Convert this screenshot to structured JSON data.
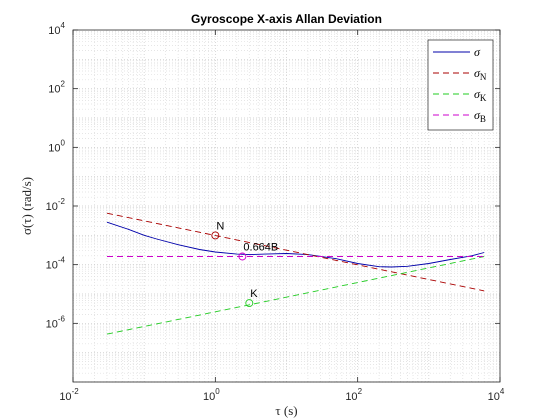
{
  "chart_data": {
    "type": "line",
    "title": "Gyroscope X-axis Allan Deviation",
    "xlabel": "τ (s)",
    "ylabel": "σ(τ) (rad/s)",
    "xscale": "log",
    "yscale": "log",
    "xlim": [
      0.01,
      10000
    ],
    "ylim": [
      1e-08,
      10000
    ],
    "grid": true,
    "minor_grid": true,
    "legend_position": "top-right",
    "xticks": [
      {
        "value": 0.01,
        "base": "10",
        "exp": "-2"
      },
      {
        "value": 1,
        "base": "10",
        "exp": "0"
      },
      {
        "value": 100,
        "base": "10",
        "exp": "2"
      },
      {
        "value": 10000,
        "base": "10",
        "exp": "4"
      }
    ],
    "yticks": [
      {
        "value": 1e-06,
        "base": "10",
        "exp": "-6"
      },
      {
        "value": 0.0001,
        "base": "10",
        "exp": "-4"
      },
      {
        "value": 0.01,
        "base": "10",
        "exp": "-2"
      },
      {
        "value": 1,
        "base": "10",
        "exp": "0"
      },
      {
        "value": 100,
        "base": "10",
        "exp": "2"
      },
      {
        "value": 10000,
        "base": "10",
        "exp": "4"
      }
    ],
    "series": [
      {
        "name": "σ",
        "color": "#0000aa",
        "dash": "solid",
        "x": [
          0.03,
          0.06,
          0.1,
          0.15,
          0.3,
          0.6,
          1,
          2,
          3,
          5,
          10,
          20,
          50,
          100,
          200,
          300,
          500,
          1000,
          2000,
          4000,
          6000
        ],
        "y": [
          0.0028,
          0.0016,
          0.001,
          0.00075,
          0.00048,
          0.00033,
          0.00027,
          0.00023,
          0.00022,
          0.00023,
          0.00024,
          0.00022,
          0.00016,
          0.00011,
          8.5e-05,
          8.3e-05,
          8.8e-05,
          0.00011,
          0.00015,
          0.0002,
          0.00026
        ]
      },
      {
        "name": "σN",
        "label_main": "σ",
        "label_sub": "N",
        "color": "#aa0000",
        "dash": "dashed",
        "x": [
          0.03,
          6000
        ],
        "y": [
          0.0057,
          1.28e-05
        ]
      },
      {
        "name": "σK",
        "label_main": "σ",
        "label_sub": "K",
        "color": "#22cc22",
        "dash": "dashed",
        "x": [
          0.03,
          6000
        ],
        "y": [
          4.3e-07,
          0.00019
        ]
      },
      {
        "name": "σB",
        "label_main": "σ",
        "label_sub": "B",
        "color": "#cc00cc",
        "dash": "dashed",
        "x": [
          0.03,
          6000
        ],
        "y": [
          0.00019,
          0.00019
        ]
      }
    ],
    "markers": [
      {
        "x": 1,
        "y": 0.00099,
        "color": "#aa0000",
        "label": "N"
      },
      {
        "x": 3,
        "y": 4.9e-06,
        "color": "#22cc22",
        "label": "K"
      },
      {
        "x": 2.4,
        "y": 0.00019,
        "color": "#cc00cc",
        "label": "0.664B"
      }
    ]
  }
}
